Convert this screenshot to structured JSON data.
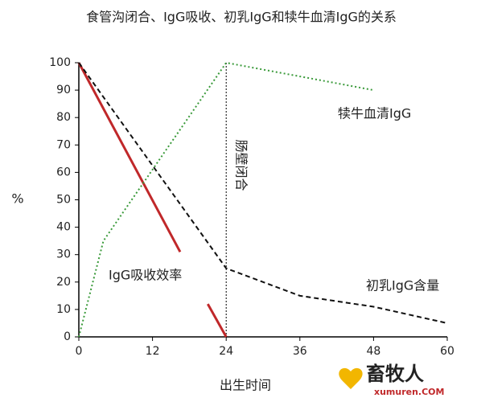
{
  "chart_data": {
    "type": "line",
    "title": "食管沟闭合、IgG吸收、初乳IgG和犊牛血清IgG的关系",
    "x_label": "出生时间",
    "y_label": "%",
    "xlim": [
      0,
      60
    ],
    "xticks": [
      0,
      12,
      24,
      36,
      48,
      60
    ],
    "ylim": [
      0,
      100
    ],
    "yticks": [
      0,
      10,
      20,
      30,
      40,
      50,
      60,
      70,
      80,
      90,
      100
    ],
    "vline": {
      "x": 24,
      "label": "肠壁闭合"
    },
    "series": [
      {
        "name": "IgG吸收效率",
        "color": "#c0282a",
        "style": "solid",
        "x": [
          0,
          16.5,
          null,
          21,
          24
        ],
        "values": [
          100,
          31,
          null,
          12,
          0
        ]
      },
      {
        "name": "初乳IgG含量",
        "color": "#111111",
        "style": "dashed",
        "x": [
          0,
          24,
          36,
          48,
          60
        ],
        "values": [
          100,
          25,
          15,
          11,
          5
        ]
      },
      {
        "name": "犊牛血清IgG",
        "color": "#3a9a3a",
        "style": "dotted",
        "x": [
          0,
          4,
          24,
          48
        ],
        "values": [
          0,
          35,
          100,
          90
        ]
      }
    ],
    "watermark": {
      "name": "畜牧人",
      "url": "xumuren.COM"
    }
  }
}
